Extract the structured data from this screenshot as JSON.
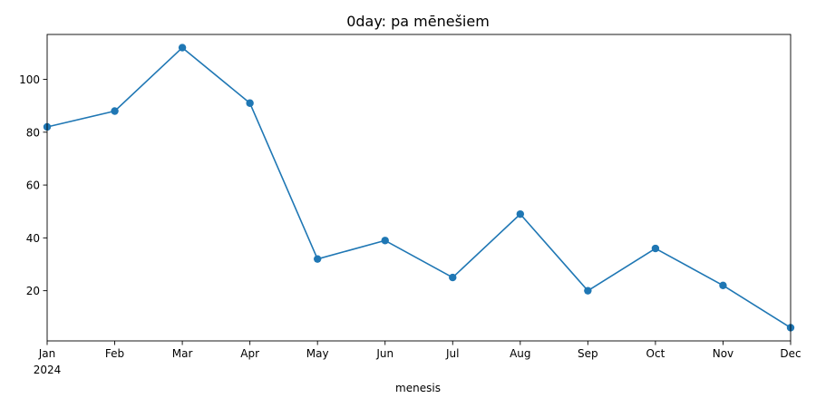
{
  "chart_data": {
    "type": "line",
    "title": "0day: pa mēnešiem",
    "xlabel": "menesis",
    "ylabel": "",
    "x": [
      "Jan",
      "Feb",
      "Mar",
      "Apr",
      "May",
      "Jun",
      "Jul",
      "Aug",
      "Sep",
      "Oct",
      "Nov",
      "Dec"
    ],
    "x_year_label": "2024",
    "series": [
      {
        "values": [
          82,
          88,
          112,
          91,
          32,
          39,
          25,
          49,
          20,
          36,
          22,
          6
        ],
        "color": "#1f77b4"
      }
    ],
    "ylim": [
      1,
      117
    ],
    "yticks": [
      20,
      40,
      60,
      80,
      100
    ],
    "grid": false,
    "legend": "none"
  }
}
